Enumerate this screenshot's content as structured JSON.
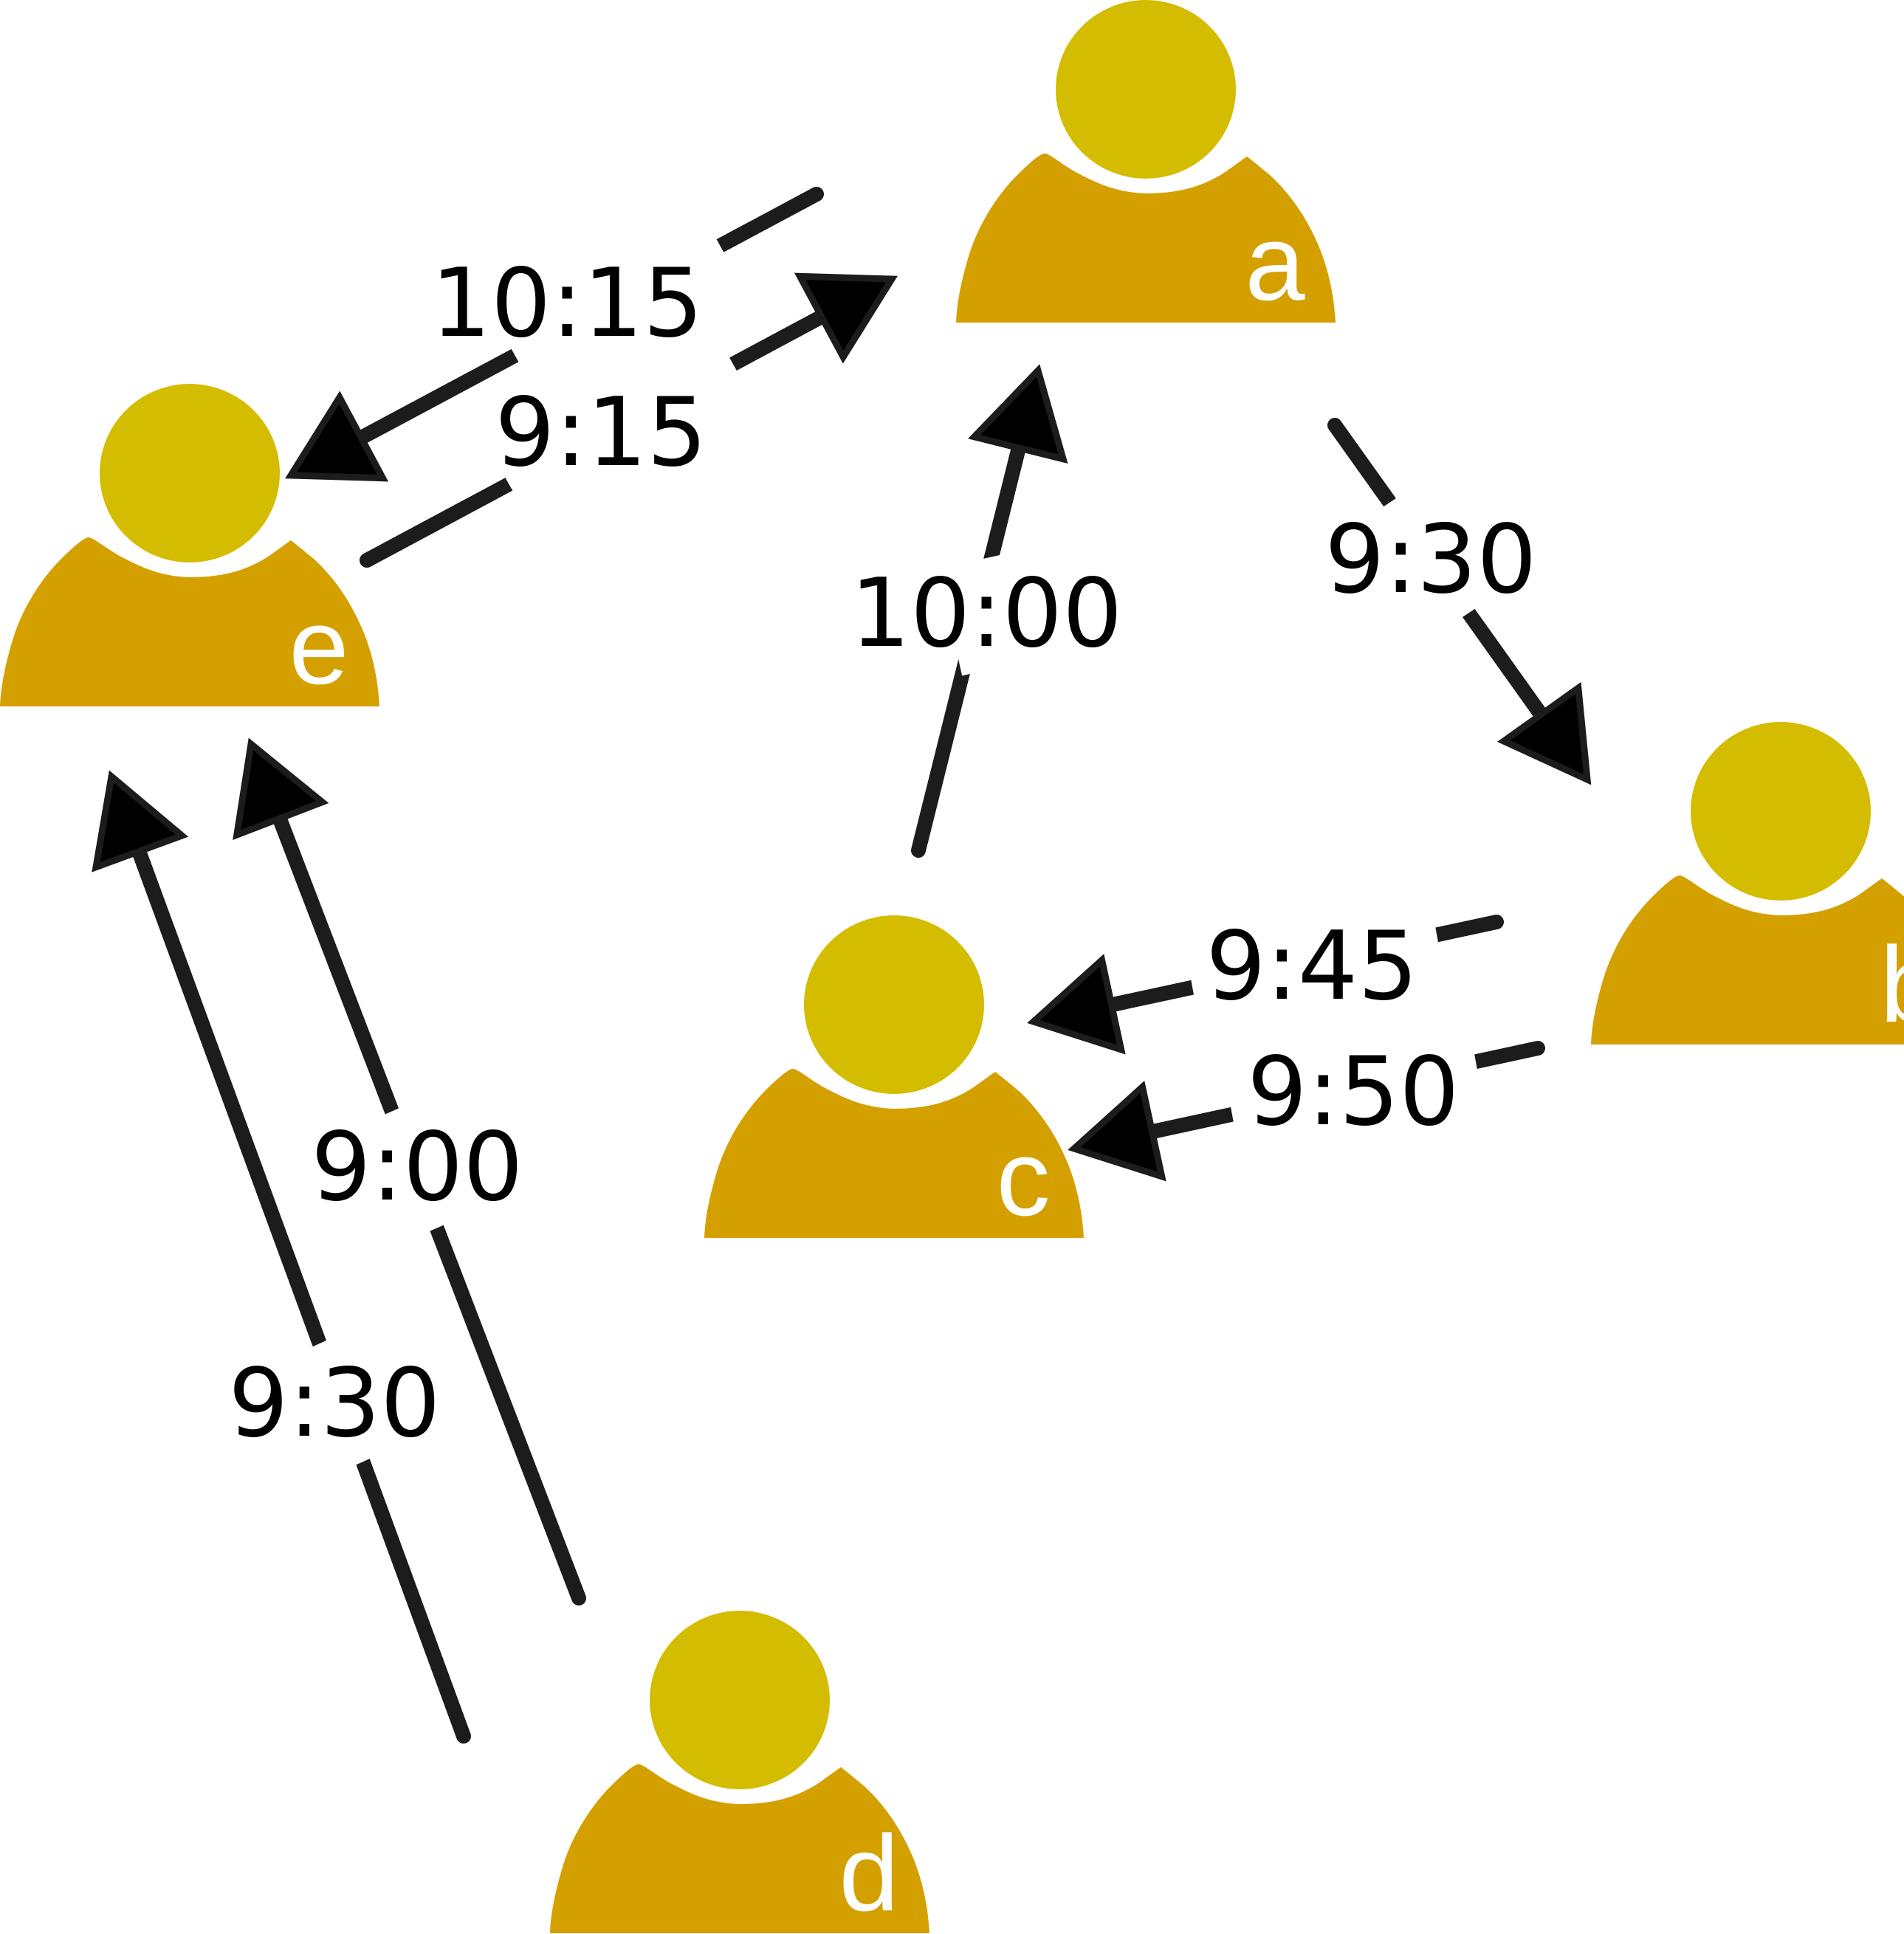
{
  "colors": {
    "head": "#d4bc00",
    "body": "#d4a000",
    "edge": "#1c1c1c",
    "arrow_fill": "#000000",
    "node_letter": "#ffffff",
    "label_text": "#000000"
  },
  "nodes": [
    {
      "id": "a",
      "label": "a",
      "icon": "person-icon"
    },
    {
      "id": "b",
      "label": "b",
      "icon": "person-icon"
    },
    {
      "id": "c",
      "label": "c",
      "icon": "person-icon"
    },
    {
      "id": "d",
      "label": "d",
      "icon": "person-icon"
    },
    {
      "id": "e",
      "label": "e",
      "icon": "person-icon"
    }
  ],
  "edges": [
    {
      "id": "e-to-a",
      "from": "e",
      "to": "a",
      "label": "9:15"
    },
    {
      "id": "a-to-e",
      "from": "a",
      "to": "e",
      "label": "10:15"
    },
    {
      "id": "a-to-b",
      "from": "a",
      "to": "b",
      "label": "9:30"
    },
    {
      "id": "c-to-a",
      "from": "c",
      "to": "a",
      "label": "10:00"
    },
    {
      "id": "b-to-c-945",
      "from": "b",
      "to": "c",
      "label": "9:45"
    },
    {
      "id": "b-to-c-950",
      "from": "b",
      "to": "c",
      "label": "9:50"
    },
    {
      "id": "d-to-e-900",
      "from": "d",
      "to": "e",
      "label": "9:00"
    },
    {
      "id": "d-to-e-930",
      "from": "d",
      "to": "e",
      "label": "9:30"
    }
  ]
}
